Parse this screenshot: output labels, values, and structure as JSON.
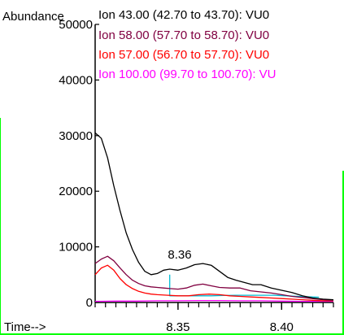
{
  "chart_data": {
    "type": "line",
    "ylabel": "Abundance",
    "xlabel": "Time-->",
    "xlim": [
      8.31,
      8.425
    ],
    "ylim": [
      0,
      50000
    ],
    "ytick_labels": [
      "0",
      "10000",
      "20000",
      "30000",
      "40000",
      "50000"
    ],
    "ytick_values": [
      0,
      10000,
      20000,
      30000,
      40000,
      50000
    ],
    "xtick_labels": [
      "8.35",
      "8.40"
    ],
    "xtick_values": [
      8.35,
      8.4
    ],
    "annotations": [
      {
        "text": "8.36",
        "x": 8.362,
        "y": 7200
      }
    ],
    "series": [
      {
        "name": "Ion  43.00 (42.70 to 43.70): VU0",
        "color": "#000000",
        "x": [
          8.31,
          8.313,
          8.316,
          8.319,
          8.322,
          8.325,
          8.328,
          8.331,
          8.334,
          8.337,
          8.34,
          8.343,
          8.346,
          8.35,
          8.354,
          8.358,
          8.362,
          8.366,
          8.37,
          8.374,
          8.378,
          8.382,
          8.386,
          8.39,
          8.395,
          8.4,
          8.405,
          8.41,
          8.415,
          8.42,
          8.425
        ],
        "values": [
          30500,
          29500,
          26000,
          21000,
          16500,
          12500,
          9500,
          7200,
          5600,
          5000,
          5200,
          5800,
          6000,
          5800,
          6200,
          6800,
          7000,
          6700,
          5600,
          4500,
          4000,
          3600,
          3200,
          3200,
          2600,
          2200,
          1800,
          1200,
          800,
          600,
          500
        ]
      },
      {
        "name": "Ion  58.00 (57.70 to 58.70): VU0",
        "color": "#800040",
        "x": [
          8.31,
          8.313,
          8.316,
          8.319,
          8.322,
          8.325,
          8.328,
          8.331,
          8.334,
          8.337,
          8.34,
          8.343,
          8.346,
          8.35,
          8.354,
          8.358,
          8.362,
          8.366,
          8.37,
          8.375,
          8.38,
          8.385,
          8.39,
          8.395,
          8.4,
          8.405,
          8.41,
          8.415,
          8.42,
          8.425
        ],
        "values": [
          7000,
          7800,
          8300,
          7500,
          6200,
          5000,
          4000,
          3400,
          3000,
          2800,
          2700,
          2600,
          2500,
          2400,
          2600,
          3100,
          3300,
          3000,
          2700,
          2600,
          2600,
          2100,
          1900,
          1700,
          1400,
          1100,
          900,
          700,
          500,
          400
        ]
      },
      {
        "name": "Ion  57.00 (56.70 to 57.70): VU0",
        "color": "#ff0000",
        "x": [
          8.31,
          8.313,
          8.316,
          8.319,
          8.322,
          8.325,
          8.328,
          8.331,
          8.334,
          8.337,
          8.34,
          8.345,
          8.35,
          8.355,
          8.36,
          8.365,
          8.37,
          8.375,
          8.38,
          8.385,
          8.39,
          8.395,
          8.4,
          8.405,
          8.41,
          8.415,
          8.42,
          8.425
        ],
        "values": [
          5000,
          6200,
          6700,
          5800,
          4300,
          3200,
          2500,
          2000,
          1700,
          1500,
          1400,
          1300,
          1200,
          1200,
          1400,
          1500,
          1400,
          1200,
          1100,
          1000,
          900,
          800,
          700,
          600,
          500,
          400,
          300,
          300
        ]
      },
      {
        "name": "Ion 100.00 (99.70 to 100.70): VU",
        "color": "#ff00ff",
        "x": [
          8.31,
          8.32,
          8.33,
          8.34,
          8.35,
          8.36,
          8.37,
          8.38,
          8.39,
          8.4,
          8.41,
          8.42,
          8.425
        ],
        "values": [
          200,
          250,
          250,
          300,
          300,
          350,
          350,
          300,
          300,
          250,
          200,
          200,
          200
        ]
      },
      {
        "name": "",
        "color": "#00bcd4",
        "x": [
          8.346,
          8.346,
          8.348,
          8.354,
          8.36,
          8.366,
          8.372,
          8.378,
          8.384,
          8.39,
          8.396,
          8.402,
          8.408,
          8.414,
          8.418
        ],
        "values": [
          5000,
          1200,
          1200,
          1200,
          1200,
          1200,
          1250,
          1300,
          1300,
          1300,
          1300,
          1200,
          1100,
          1000,
          950
        ]
      }
    ]
  }
}
